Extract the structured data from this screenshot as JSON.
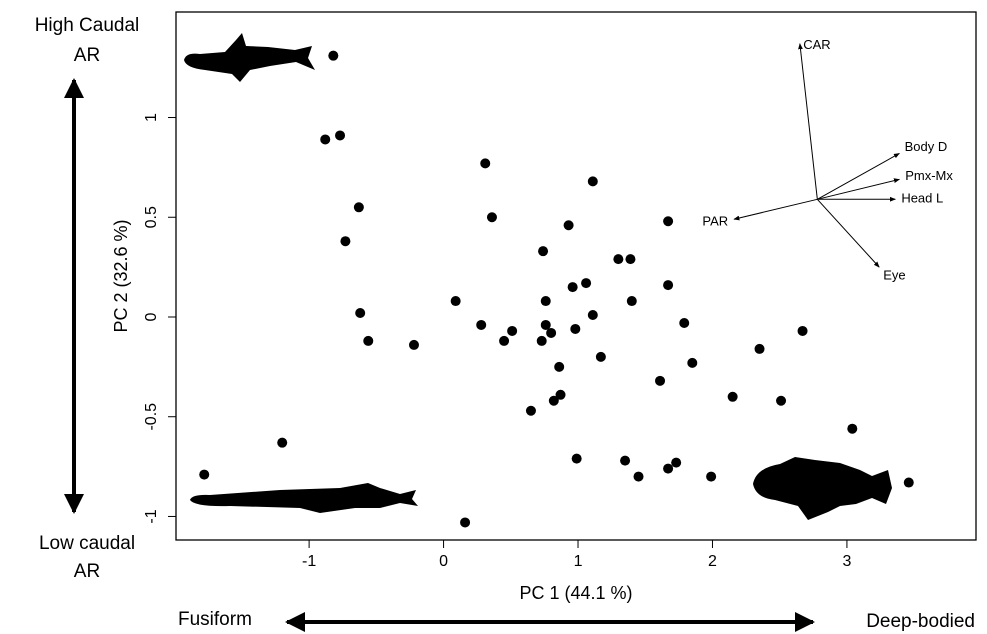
{
  "chart_data": {
    "type": "scatter",
    "x_label": "PC 1 (44.1 %)",
    "y_label": "PC 2 (32.6 %)",
    "xlim": [
      -1.99,
      3.96
    ],
    "ylim": [
      -1.118,
      1.529
    ],
    "xticks": [
      -1,
      0,
      1,
      2,
      3
    ],
    "yticks": [
      -1,
      -0.5,
      0,
      0.5,
      1
    ],
    "color": "#000000",
    "x": [
      -0.82,
      -0.88,
      -0.77,
      -0.63,
      -0.73,
      -0.62,
      -0.56,
      -0.22,
      -1.2,
      -1.78,
      0.16,
      0.09,
      0.31,
      0.36,
      0.28,
      0.51,
      0.45,
      0.74,
      0.76,
      0.76,
      0.8,
      0.73,
      0.86,
      0.87,
      0.82,
      0.65,
      0.93,
      0.96,
      1.06,
      0.98,
      1.11,
      1.11,
      1.17,
      1.3,
      1.39,
      1.4,
      0.99,
      1.35,
      1.45,
      1.67,
      1.67,
      1.67,
      1.73,
      1.61,
      1.79,
      1.85,
      1.99,
      2.15,
      2.35,
      2.51,
      2.67,
      3.04,
      3.46
    ],
    "y": [
      1.31,
      0.89,
      0.91,
      0.55,
      0.38,
      0.02,
      -0.12,
      -0.14,
      -0.63,
      -0.79,
      -1.03,
      0.08,
      0.77,
      0.5,
      -0.04,
      -0.07,
      -0.12,
      0.33,
      0.08,
      -0.04,
      -0.08,
      -0.12,
      -0.25,
      -0.39,
      -0.42,
      -0.47,
      0.46,
      0.15,
      0.17,
      -0.06,
      0.01,
      0.68,
      -0.2,
      0.29,
      0.29,
      0.08,
      -0.71,
      -0.72,
      -0.8,
      0.48,
      0.16,
      -0.76,
      -0.73,
      -0.32,
      -0.03,
      -0.23,
      -0.8,
      -0.4,
      -0.16,
      -0.42,
      -0.07,
      -0.56,
      -0.83
    ],
    "vector_origin": [
      2.78,
      0.59
    ],
    "vectors": [
      {
        "name": "CAR",
        "x": 2.65,
        "y": 1.37
      },
      {
        "name": "Body D",
        "x": 3.39,
        "y": 0.82
      },
      {
        "name": "Pmx-Mx",
        "x": 3.39,
        "y": 0.69
      },
      {
        "name": "Head L",
        "x": 3.36,
        "y": 0.59
      },
      {
        "name": "Eye",
        "x": 3.24,
        "y": 0.25
      },
      {
        "name": "PAR",
        "x": 2.16,
        "y": 0.49
      }
    ],
    "annotations": {
      "top_left": [
        "High Caudal",
        "AR"
      ],
      "bottom_left": [
        "Low caudal",
        "AR"
      ],
      "bottom_left_x": "Fusiform",
      "bottom_right_x": "Deep-bodied"
    }
  }
}
